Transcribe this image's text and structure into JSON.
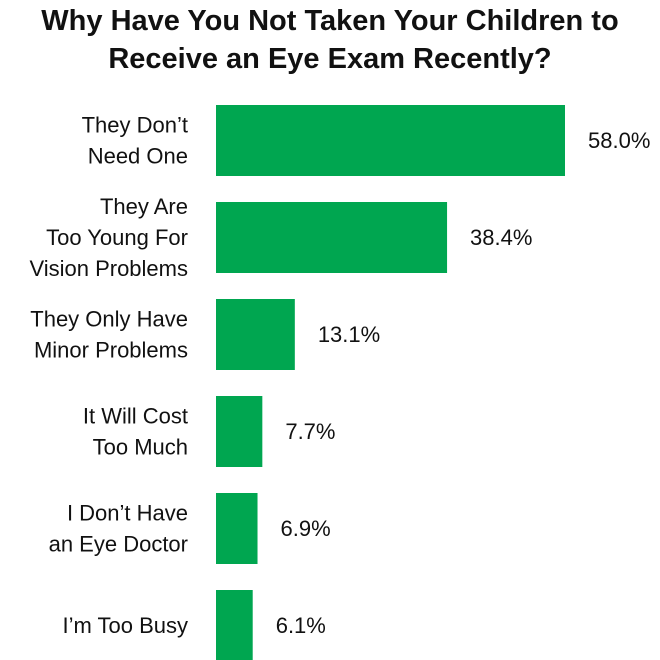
{
  "chart_data": {
    "type": "bar",
    "orientation": "horizontal",
    "title_lines": [
      "Why Have You Not Taken Your Children to",
      "Receive an Eye Exam Recently?"
    ],
    "categories": [
      [
        "They Don’t",
        "Need One"
      ],
      [
        "They Are",
        "Too Young For",
        "Vision Problems"
      ],
      [
        "They Only Have",
        "Minor Problems"
      ],
      [
        "It Will Cost",
        "Too Much"
      ],
      [
        "I Don’t Have",
        "an Eye Doctor"
      ],
      [
        "I’m Too Busy"
      ]
    ],
    "values": [
      58.0,
      38.4,
      13.1,
      7.7,
      6.9,
      6.1
    ],
    "value_labels": [
      "58.0%",
      "38.4%",
      "13.1%",
      "7.7%",
      "6.9%",
      "6.1%"
    ],
    "bar_color": "#00a650",
    "grid": false,
    "legend": "none"
  }
}
